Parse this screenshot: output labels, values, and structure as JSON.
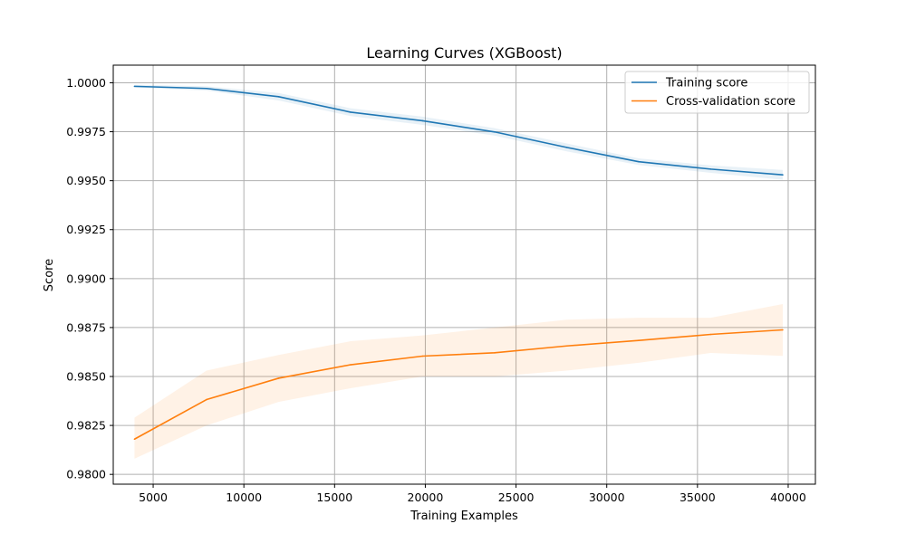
{
  "chart_data": {
    "type": "line",
    "title": "Learning Curves (XGBoost)",
    "xlabel": "Training Examples",
    "ylabel": "Score",
    "xlim": [
      2800,
      41500
    ],
    "ylim": [
      0.9795,
      1.0009
    ],
    "xticks": [
      5000,
      10000,
      15000,
      20000,
      25000,
      30000,
      35000,
      40000
    ],
    "xtick_labels": [
      "5000",
      "10000",
      "15000",
      "20000",
      "25000",
      "30000",
      "35000",
      "40000"
    ],
    "yticks": [
      0.98,
      0.9825,
      0.985,
      0.9875,
      0.99,
      0.9925,
      0.995,
      0.9975,
      1.0
    ],
    "ytick_labels": [
      "0.9800",
      "0.9825",
      "0.9850",
      "0.9875",
      "0.9900",
      "0.9925",
      "0.9950",
      "0.9975",
      "1.0000"
    ],
    "grid": true,
    "legend_position": "top-right",
    "x": [
      3970,
      7940,
      11910,
      15880,
      19850,
      23820,
      27790,
      31760,
      35730,
      39700
    ],
    "series": [
      {
        "name": "Training score",
        "color": "#1f77b4",
        "values": [
          0.99982,
          0.99971,
          0.99929,
          0.9985,
          0.99806,
          0.99749,
          0.9967,
          0.99597,
          0.99559,
          0.9953
        ],
        "lower": [
          0.99975,
          0.9996,
          0.9991,
          0.9983,
          0.99785,
          0.9973,
          0.9965,
          0.9958,
          0.9954,
          0.99505
        ],
        "upper": [
          0.9999,
          0.99982,
          0.99948,
          0.9987,
          0.99827,
          0.99768,
          0.9969,
          0.99614,
          0.99578,
          0.99555
        ]
      },
      {
        "name": "Cross-validation score",
        "color": "#ff7f0e",
        "values": [
          0.9818,
          0.98382,
          0.98491,
          0.9856,
          0.98604,
          0.98621,
          0.98656,
          0.98684,
          0.98715,
          0.98738
        ],
        "lower": [
          0.9808,
          0.9825,
          0.9837,
          0.9844,
          0.985,
          0.985,
          0.9853,
          0.9857,
          0.9862,
          0.98605
        ],
        "upper": [
          0.9829,
          0.9853,
          0.9861,
          0.9868,
          0.9871,
          0.9875,
          0.9879,
          0.988,
          0.988,
          0.9887
        ]
      }
    ]
  }
}
